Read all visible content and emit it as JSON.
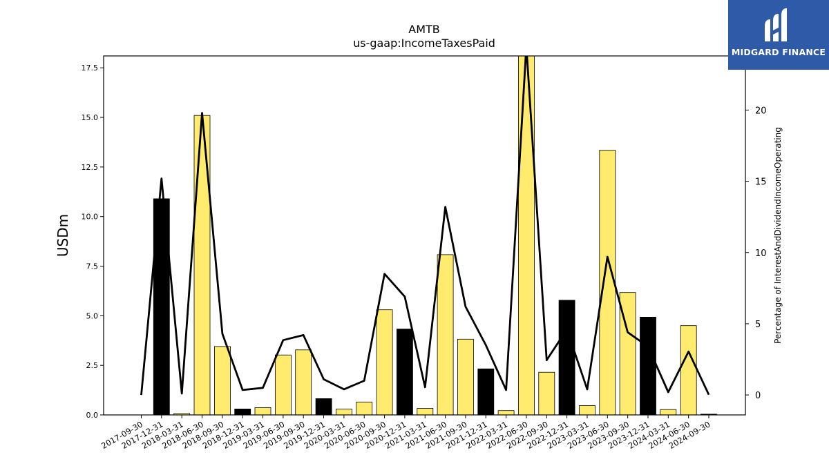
{
  "chart_data": {
    "type": "bar",
    "title": "AMTB",
    "subtitle": "us-gaap:IncomeTaxesPaid",
    "ylabel": "USDm",
    "y2label": "Percentage of InterestAndDividendIncomeOperating",
    "ylim": [
      0,
      18.1
    ],
    "y2lim": [
      -1.4,
      23.8
    ],
    "yticks": [
      "0.0",
      "2.5",
      "5.0",
      "7.5",
      "10.0",
      "12.5",
      "15.0",
      "17.5"
    ],
    "y2ticks": [
      "0",
      "5",
      "10",
      "15",
      "20"
    ],
    "categories": [
      "2017-09-30",
      "2017-12-31",
      "2018-03-31",
      "2018-06-30",
      "2018-09-30",
      "2018-12-31",
      "2019-03-31",
      "2019-06-30",
      "2019-09-30",
      "2019-12-31",
      "2020-03-31",
      "2020-06-30",
      "2020-09-30",
      "2020-12-31",
      "2021-03-31",
      "2021-06-30",
      "2021-09-30",
      "2021-12-31",
      "2022-03-31",
      "2022-06-30",
      "2022-09-30",
      "2022-12-31",
      "2023-03-31",
      "2023-06-30",
      "2023-09-30",
      "2023-12-31",
      "2024-03-31",
      "2024-06-30",
      "2024-09-30"
    ],
    "series": [
      {
        "kind": "bar",
        "axis": "left",
        "values": [
          0,
          10.9,
          0.07,
          15.1,
          3.45,
          0.3,
          0.37,
          3.02,
          3.28,
          0.82,
          0.3,
          0.65,
          5.3,
          4.33,
          0.33,
          8.08,
          3.82,
          2.32,
          0.22,
          18.1,
          2.15,
          5.78,
          0.47,
          13.35,
          6.17,
          4.93,
          0.27,
          4.5,
          0.04
        ],
        "bar_colors": [
          "#ffeb6e",
          "#000000",
          "#ffeb6e",
          "#ffeb6e",
          "#ffeb6e",
          "#000000",
          "#ffeb6e",
          "#ffeb6e",
          "#ffeb6e",
          "#000000",
          "#ffeb6e",
          "#ffeb6e",
          "#ffeb6e",
          "#000000",
          "#ffeb6e",
          "#ffeb6e",
          "#ffeb6e",
          "#000000",
          "#ffeb6e",
          "#ffeb6e",
          "#ffeb6e",
          "#000000",
          "#ffeb6e",
          "#ffeb6e",
          "#ffeb6e",
          "#000000",
          "#ffeb6e",
          "#ffeb6e",
          "#000000"
        ]
      },
      {
        "kind": "line",
        "axis": "right",
        "color": "#000000",
        "values": [
          0,
          15.2,
          0.1,
          19.8,
          4.3,
          0.35,
          0.5,
          3.85,
          4.2,
          1.1,
          0.4,
          1.0,
          8.5,
          6.9,
          0.55,
          13.2,
          6.2,
          3.5,
          0.35,
          24.5,
          2.45,
          4.6,
          0.4,
          9.7,
          4.4,
          3.4,
          0.2,
          3.05,
          0.02
        ]
      }
    ],
    "grid": false
  },
  "brand": {
    "name": "MIDGARD FINANCE",
    "accent": "#2e5aa8"
  }
}
